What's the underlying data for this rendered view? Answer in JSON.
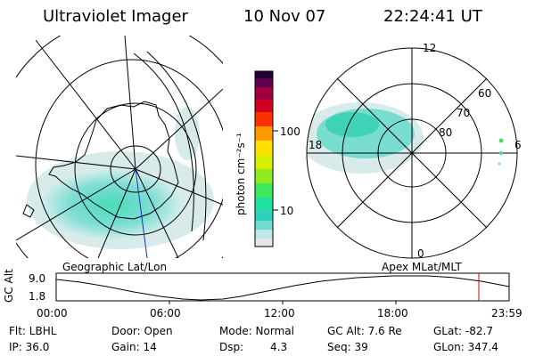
{
  "header": {
    "instrument": "Ultraviolet Imager",
    "date": "10 Nov 07",
    "time": "22:24:41 UT"
  },
  "colorbar": {
    "unit": "photon cm⁻²s⁻¹",
    "ticks": [
      "100",
      "10"
    ],
    "scale": "log",
    "colors": [
      "#e6e6e6",
      "#c0e8e8",
      "#40d8c0",
      "#10c8b8",
      "#20e890",
      "#60e840",
      "#c0f000",
      "#ffe800",
      "#ff9000",
      "#ff2000",
      "#c00030",
      "#800040",
      "#200030"
    ]
  },
  "maps": {
    "left_label": "Geographic Lat/Lon",
    "right_label": "Apex  MLat/MLT",
    "mlt_labels": [
      "12",
      "18",
      "6",
      "0"
    ],
    "mlat_labels": [
      "60",
      "70",
      "80"
    ]
  },
  "altitude_plot": {
    "ylabel": "GC Alt",
    "yticks": [
      "9.0",
      "1.8"
    ],
    "xticks": [
      "00:00",
      "06:00",
      "12:00",
      "18:00",
      "23:59"
    ],
    "marker_color": "#d00000"
  },
  "info": {
    "filter": "Flt: LBHL",
    "door": "Door: Open",
    "mode": "Mode: Normal",
    "gc_alt": "GC Alt: 7.6 Re",
    "glat": "GLat: -82.7",
    "ip": "IP: 36.0",
    "gain": "Gain: 14",
    "dsp_label": "Dsp:",
    "dsp_value": "4.3",
    "seq": "Seq: 39",
    "glon": "GLon: 347.4"
  }
}
